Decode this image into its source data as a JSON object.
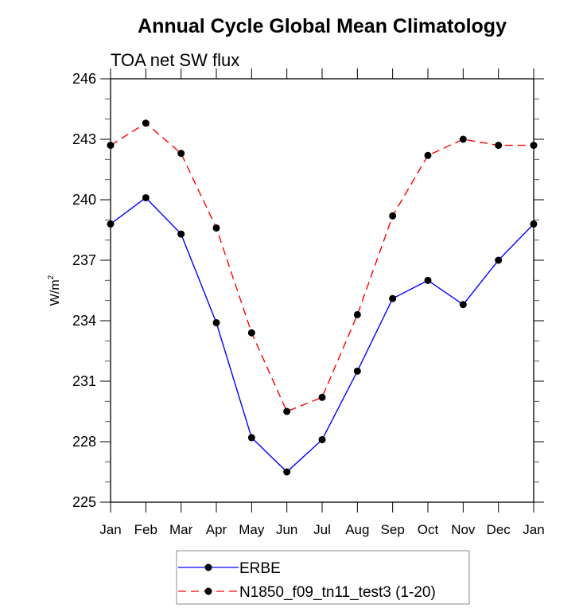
{
  "chart_data": {
    "type": "line",
    "title": "Annual Cycle Global Mean Climatology",
    "subtitle": "TOA net SW flux",
    "xlabel": "",
    "ylabel": "W/m",
    "ylabel_superscript": "2",
    "categories": [
      "Jan",
      "Feb",
      "Mar",
      "Apr",
      "May",
      "Jun",
      "Jul",
      "Aug",
      "Sep",
      "Oct",
      "Nov",
      "Dec",
      "Jan"
    ],
    "ylim": [
      225,
      246
    ],
    "yticks": [
      225,
      228,
      231,
      234,
      237,
      240,
      243,
      246
    ],
    "yticks_minor_step": 1,
    "grid": false,
    "legend_position": "bottom-center",
    "series": [
      {
        "name": "ERBE",
        "color": "#0000ff",
        "line_style": "solid",
        "marker": "filled-circle",
        "marker_color": "#000000",
        "values": [
          238.8,
          240.1,
          238.3,
          233.9,
          228.2,
          226.5,
          228.1,
          231.5,
          235.1,
          236.0,
          234.8,
          237.0,
          238.8
        ]
      },
      {
        "name": "N1850_f09_tn11_test3 (1-20)",
        "color": "#ff0000",
        "line_style": "dashed",
        "marker": "filled-circle",
        "marker_color": "#000000",
        "values": [
          242.7,
          243.8,
          242.3,
          238.6,
          233.4,
          229.5,
          230.2,
          234.3,
          239.2,
          242.2,
          243.0,
          242.7,
          242.7
        ]
      }
    ]
  }
}
